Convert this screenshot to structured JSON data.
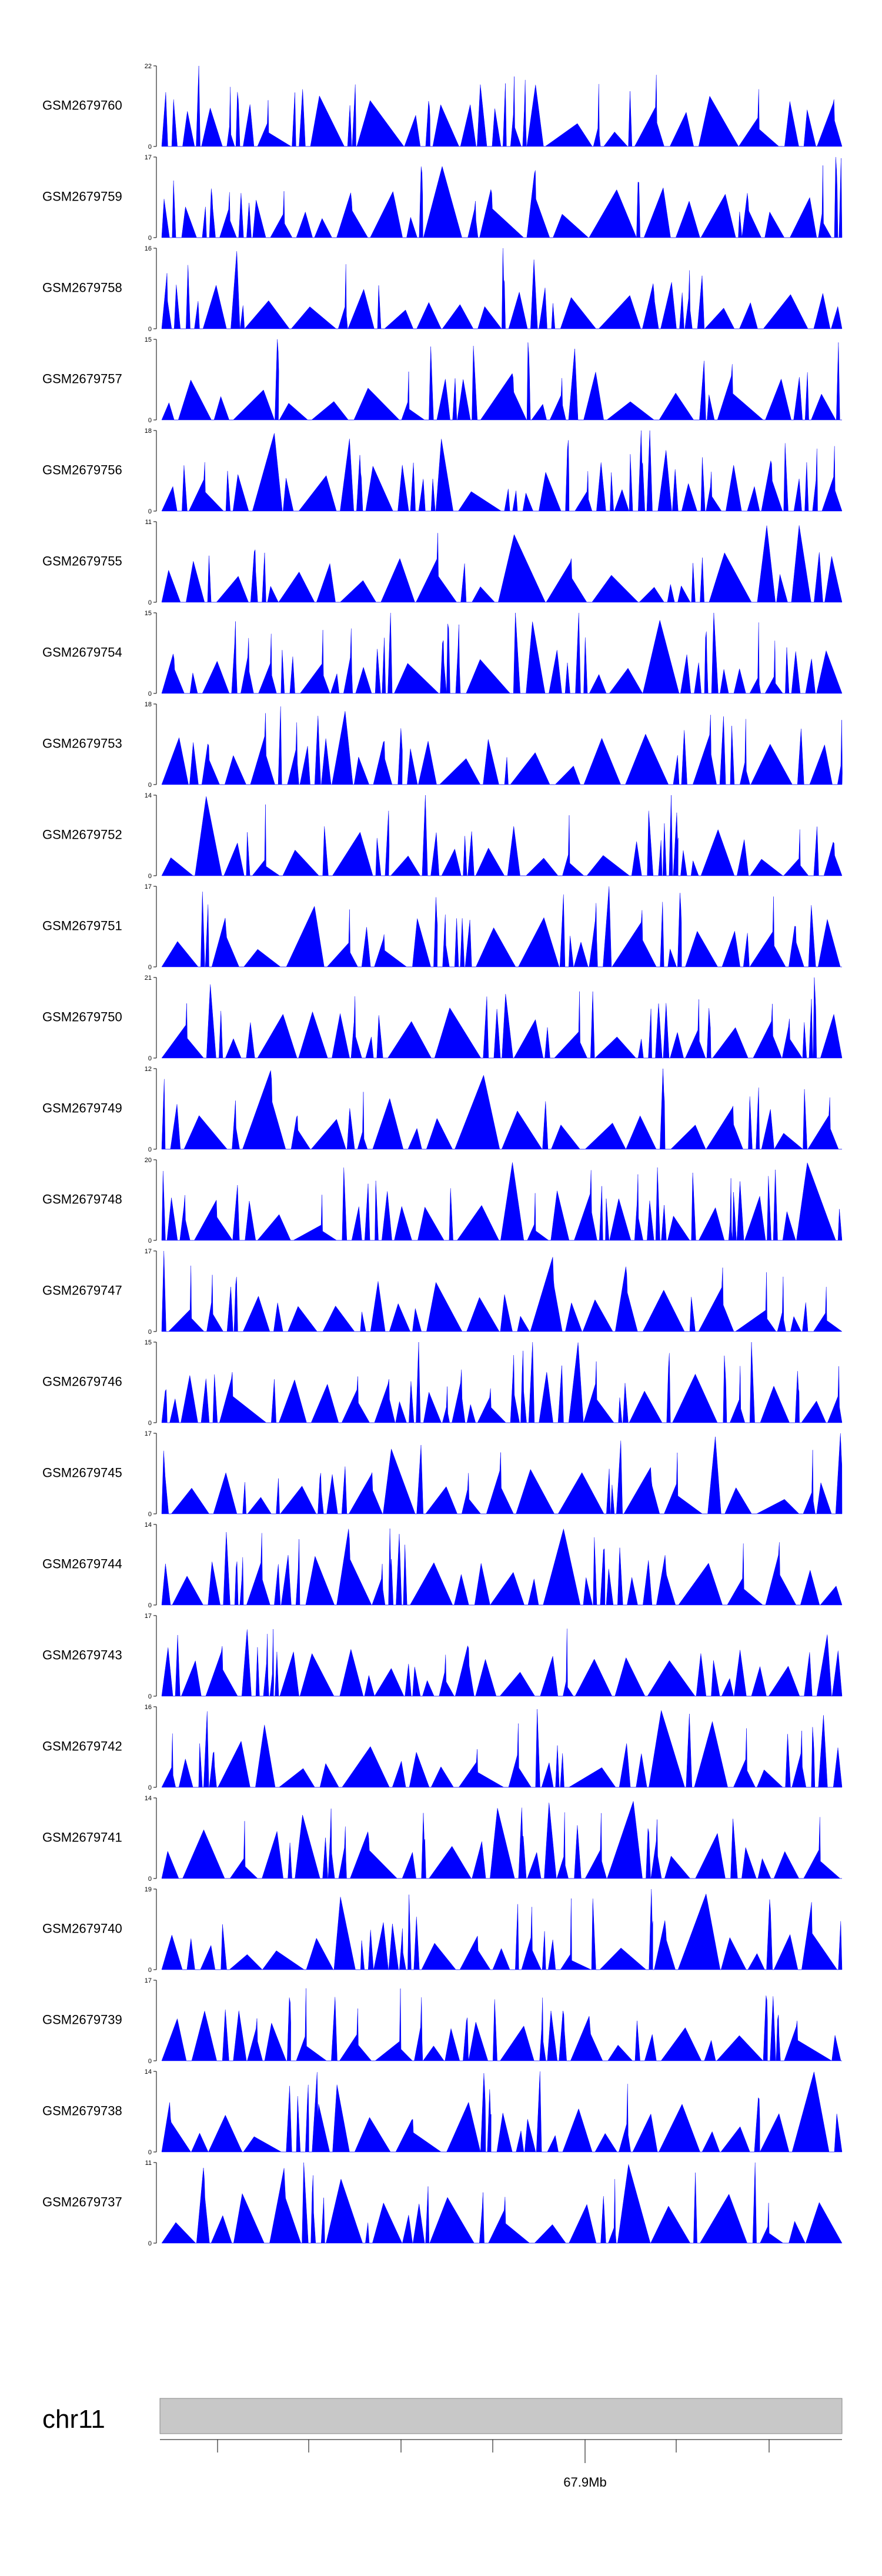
{
  "chart_data": {
    "type": "area",
    "fill_color": "#0000ff",
    "ideogram_color": "#c8c8c8",
    "tracks": [
      {
        "name": "GSM2679760",
        "max": 22
      },
      {
        "name": "GSM2679759",
        "max": 17
      },
      {
        "name": "GSM2679758",
        "max": 16
      },
      {
        "name": "GSM2679757",
        "max": 15
      },
      {
        "name": "GSM2679756",
        "max": 18
      },
      {
        "name": "GSM2679755",
        "max": 11
      },
      {
        "name": "GSM2679754",
        "max": 15
      },
      {
        "name": "GSM2679753",
        "max": 18
      },
      {
        "name": "GSM2679752",
        "max": 14
      },
      {
        "name": "GSM2679751",
        "max": 17
      },
      {
        "name": "GSM2679750",
        "max": 21
      },
      {
        "name": "GSM2679749",
        "max": 12
      },
      {
        "name": "GSM2679748",
        "max": 20
      },
      {
        "name": "GSM2679747",
        "max": 17
      },
      {
        "name": "GSM2679746",
        "max": 15
      },
      {
        "name": "GSM2679745",
        "max": 17
      },
      {
        "name": "GSM2679744",
        "max": 14
      },
      {
        "name": "GSM2679743",
        "max": 17
      },
      {
        "name": "GSM2679742",
        "max": 16
      },
      {
        "name": "GSM2679741",
        "max": 14
      },
      {
        "name": "GSM2679740",
        "max": 19
      },
      {
        "name": "GSM2679739",
        "max": 17
      },
      {
        "name": "GSM2679738",
        "max": 14
      },
      {
        "name": "GSM2679737",
        "max": 11
      }
    ],
    "y_min_label": "0",
    "chromosome": "chr11",
    "position_label": "67.9Mb"
  }
}
